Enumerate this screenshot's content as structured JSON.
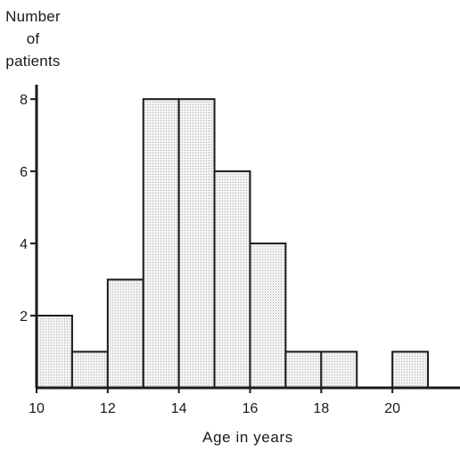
{
  "chart_data": {
    "type": "bar",
    "subtype": "histogram",
    "ylabel": [
      "Number",
      "of",
      "patients"
    ],
    "xlabel": "Age in years",
    "bins": [
      {
        "x0": 10,
        "x1": 11,
        "value": 2
      },
      {
        "x0": 11,
        "x1": 12,
        "value": 1
      },
      {
        "x0": 12,
        "x1": 13,
        "value": 3
      },
      {
        "x0": 13,
        "x1": 14,
        "value": 8
      },
      {
        "x0": 14,
        "x1": 15,
        "value": 8
      },
      {
        "x0": 15,
        "x1": 16,
        "value": 6
      },
      {
        "x0": 16,
        "x1": 17,
        "value": 4
      },
      {
        "x0": 17,
        "x1": 18,
        "value": 1
      },
      {
        "x0": 18,
        "x1": 19,
        "value": 1
      },
      {
        "x0": 19,
        "x1": 20,
        "value": 0
      },
      {
        "x0": 20,
        "x1": 21,
        "value": 1
      }
    ],
    "xlim": [
      10,
      21.9
    ],
    "ylim": [
      0,
      8.4
    ],
    "xticks": [
      10,
      12,
      14,
      16,
      18,
      20
    ],
    "yticks": [
      2,
      4,
      6,
      8
    ],
    "grid": false,
    "bar_fill": "stippled light gray"
  }
}
